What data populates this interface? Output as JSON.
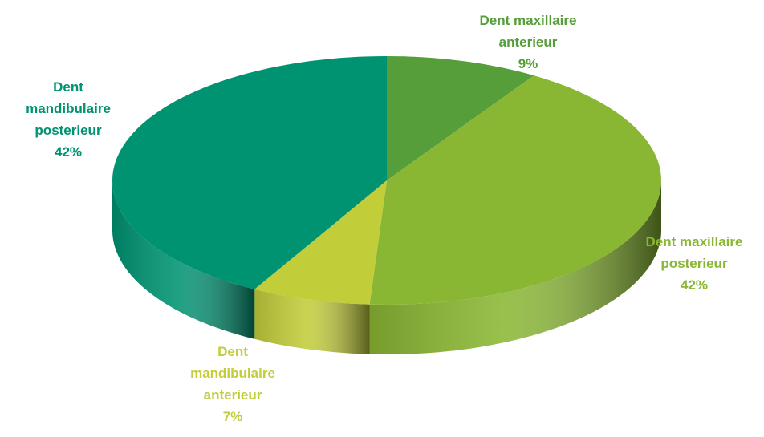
{
  "chart_data": {
    "type": "pie3d",
    "categories": [
      "Dent maxillaire anterieur",
      "Dent maxillaire posterieur",
      "Dent mandibulaire anterieur",
      "Dent mandibulaire posterieur"
    ],
    "values": [
      9,
      42,
      7,
      42
    ],
    "value_labels": [
      "9%",
      "42%",
      "7%",
      "42%"
    ],
    "colors": [
      "#559e3a",
      "#8ab733",
      "#c2cd3a",
      "#009372"
    ]
  }
}
